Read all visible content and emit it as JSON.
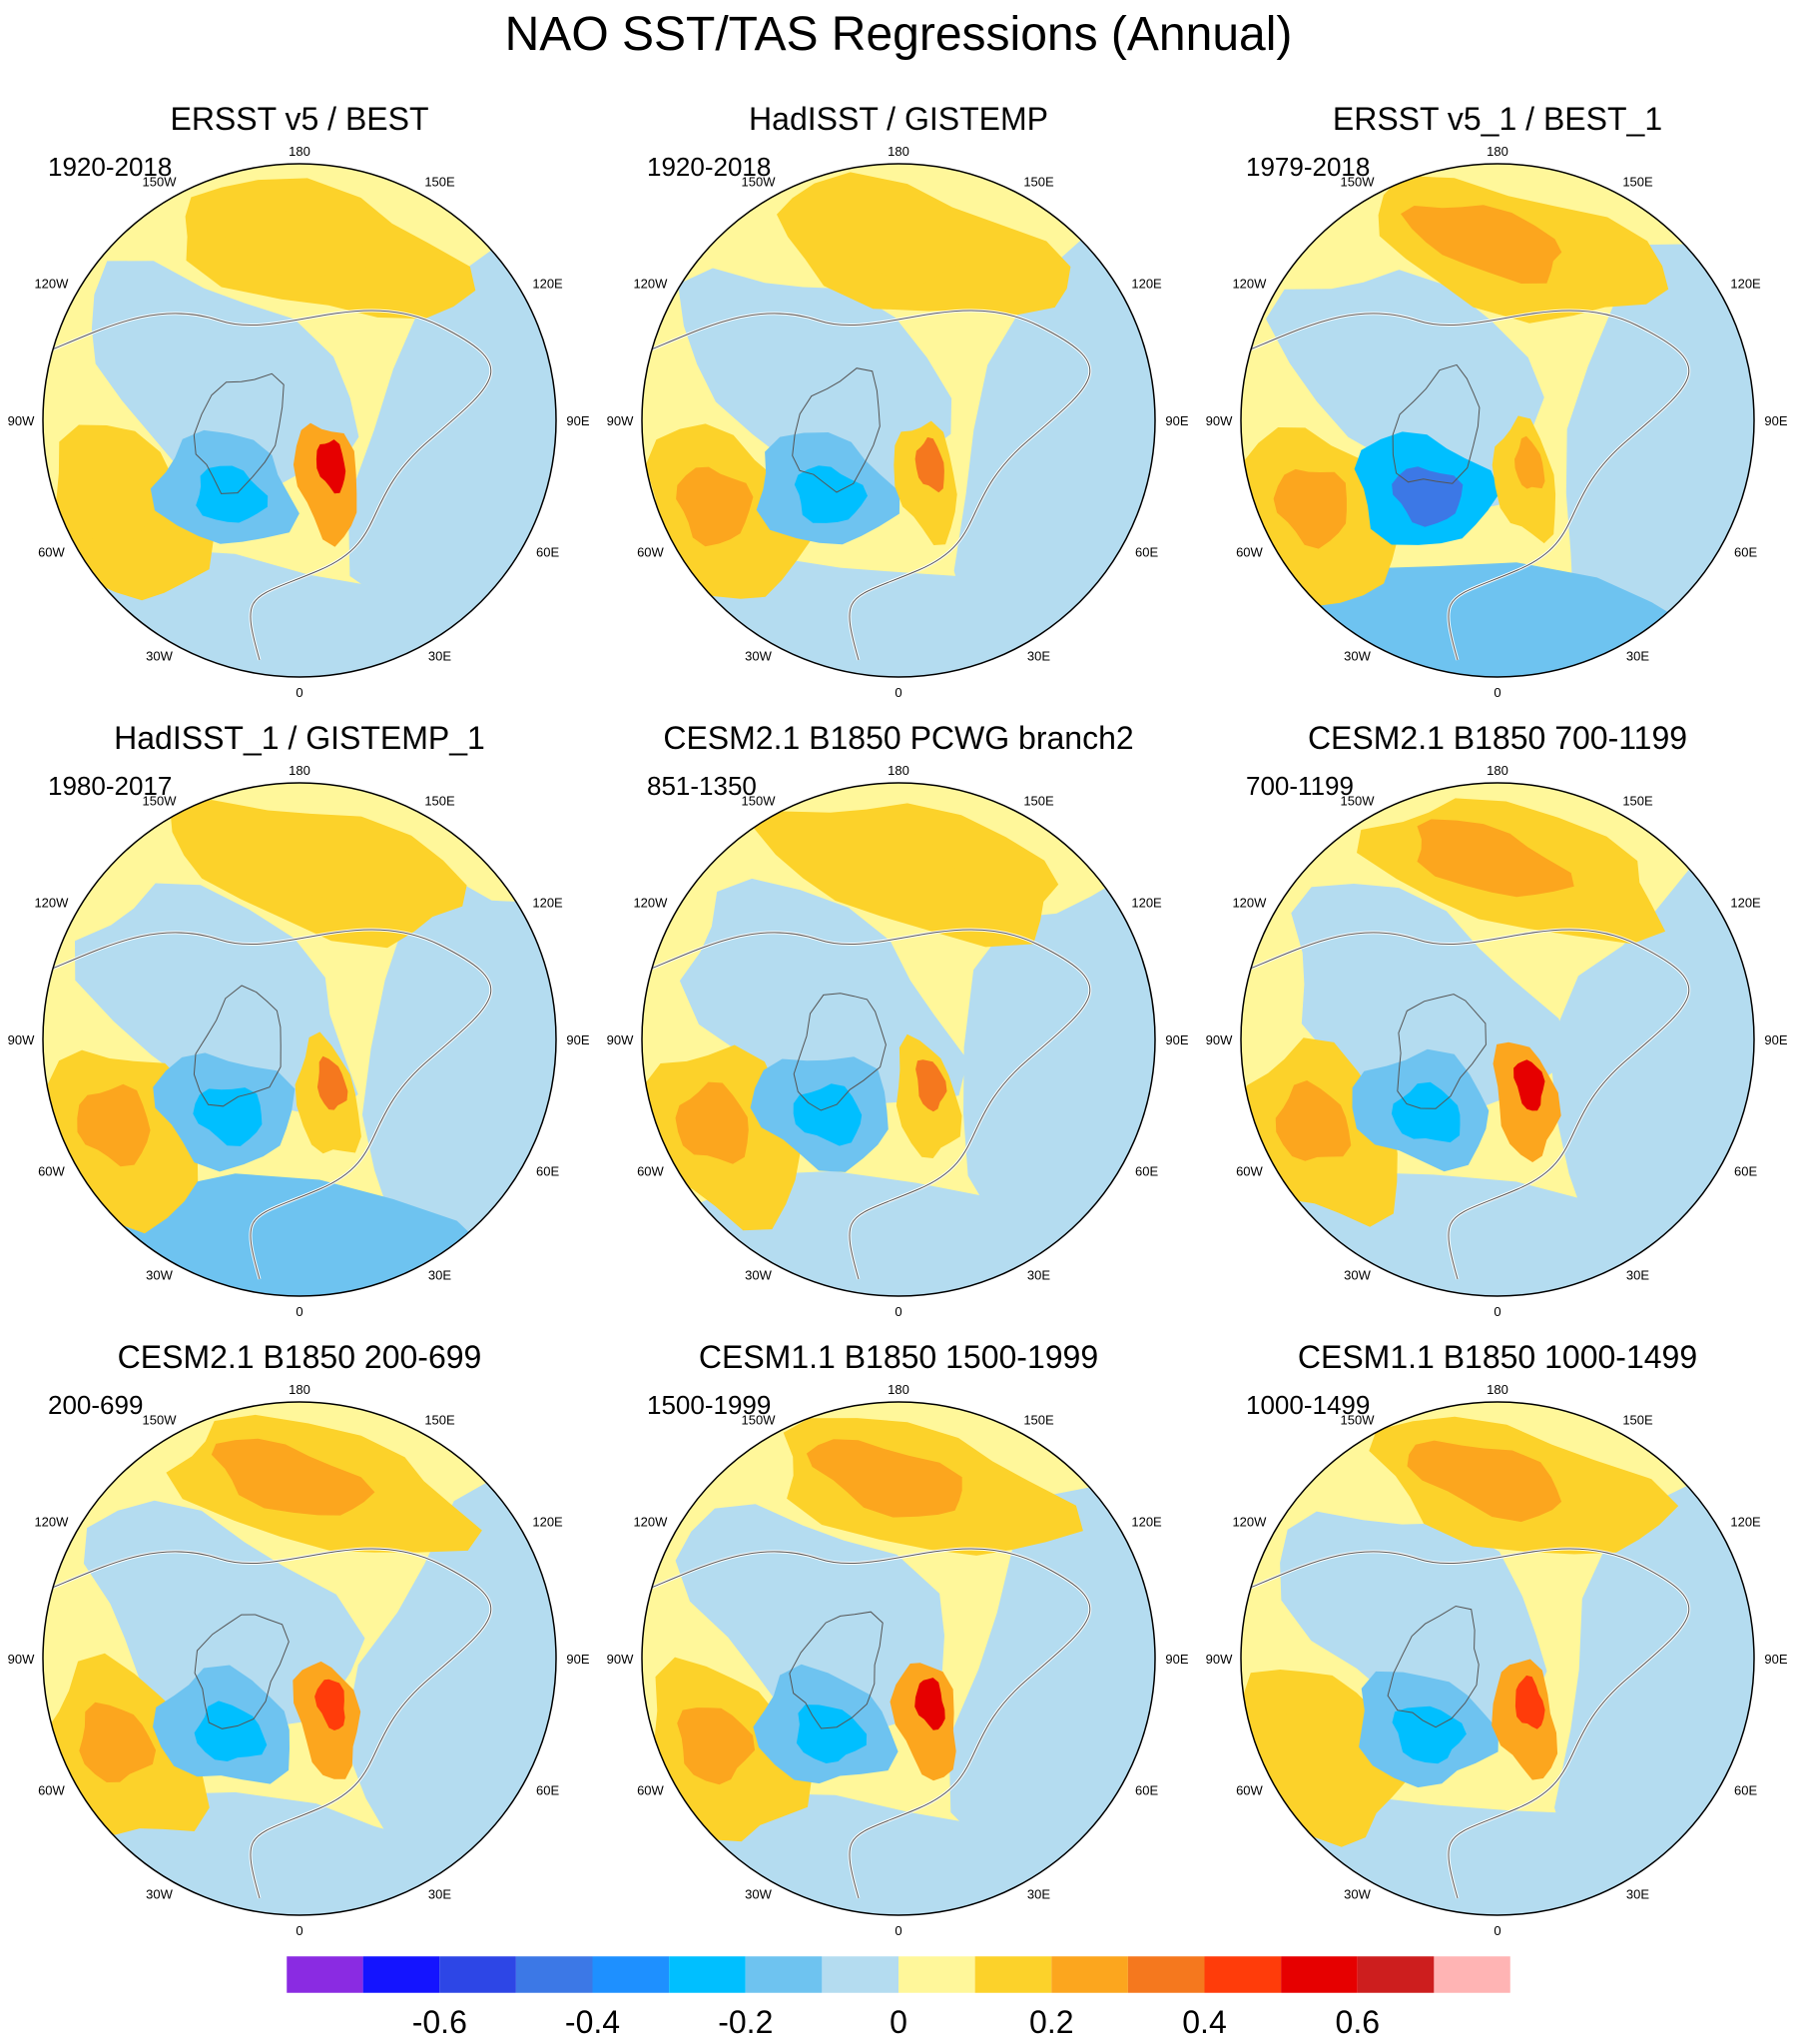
{
  "figure": {
    "title": "NAO SST/TAS Regressions (Annual)"
  },
  "chart_data": {
    "type": "polar-stereographic contour maps (regression)",
    "projection": "north polar stereographic, 0 at bottom, 180 at top",
    "longitude_labels": [
      "180",
      "150W",
      "150E",
      "120W",
      "120E",
      "90W",
      "90E",
      "60W",
      "60E",
      "30W",
      "30E",
      "0"
    ],
    "panels": [
      {
        "title": "ERSST v5 / BEST",
        "period": "1920-2018",
        "features": {
          "north_pacific": 0.15,
          "northwest_atlantic": 0.15,
          "labrador_greenland": -0.25,
          "scandinavia_max": 0.5,
          "eastern_atlantic": -0.05
        }
      },
      {
        "title": "HadISST / GISTEMP",
        "period": "1920-2018",
        "features": {
          "north_pacific": 0.15,
          "northwest_atlantic": 0.2,
          "labrador_greenland": -0.3,
          "scandinavia_max": 0.3,
          "eastern_atlantic": -0.05
        }
      },
      {
        "title": "ERSST v5_1 / BEST_1",
        "period": "1979-2018",
        "features": {
          "north_pacific": 0.2,
          "northwest_atlantic": 0.2,
          "labrador_greenland": -0.45,
          "scandinavia_max": 0.2,
          "eastern_atlantic": -0.15
        }
      },
      {
        "title": "HadISST_1 / GISTEMP_1",
        "period": "1980-2017",
        "features": {
          "north_pacific": 0.15,
          "northwest_atlantic": 0.2,
          "labrador_greenland": -0.3,
          "scandinavia_max": 0.3,
          "eastern_atlantic": -0.2
        }
      },
      {
        "title": "CESM2.1 B1850 PCWG branch2",
        "period": "851-1350",
        "features": {
          "north_pacific": 0.15,
          "northwest_atlantic": 0.2,
          "labrador_greenland": -0.25,
          "scandinavia_max": 0.3,
          "eastern_atlantic": -0.1
        }
      },
      {
        "title": "CESM2.1 B1850 700-1199",
        "period": "700-1199",
        "features": {
          "north_pacific": 0.2,
          "northwest_atlantic": 0.2,
          "labrador_greenland": -0.25,
          "scandinavia_max": 0.5,
          "eastern_atlantic": -0.1
        }
      },
      {
        "title": "CESM2.1 B1850 200-699",
        "period": "200-699",
        "features": {
          "north_pacific": 0.2,
          "northwest_atlantic": 0.2,
          "labrador_greenland": -0.25,
          "scandinavia_max": 0.45,
          "eastern_atlantic": -0.1
        }
      },
      {
        "title": "CESM1.1 B1850 1500-1999",
        "period": "1500-1999",
        "features": {
          "north_pacific": 0.25,
          "northwest_atlantic": 0.2,
          "labrador_greenland": -0.3,
          "scandinavia_max": 0.5,
          "eastern_atlantic": -0.1
        }
      },
      {
        "title": "CESM1.1 B1850 1000-1499",
        "period": "1000-1499",
        "features": {
          "north_pacific": 0.2,
          "northwest_atlantic": 0.15,
          "labrador_greenland": -0.3,
          "scandinavia_max": 0.4,
          "eastern_atlantic": -0.1
        }
      }
    ],
    "colorbar": {
      "levels": [
        -0.7,
        -0.6,
        -0.5,
        -0.4,
        -0.3,
        -0.2,
        -0.1,
        0,
        0.1,
        0.2,
        0.3,
        0.4,
        0.5,
        0.6,
        0.7
      ],
      "tick_values": [
        -0.6,
        -0.4,
        -0.2,
        0,
        0.2,
        0.4,
        0.6
      ],
      "tick_labels": [
        "-0.6",
        "-0.4",
        "-0.2",
        "0",
        "0.2",
        "0.4",
        "0.6"
      ],
      "colors": [
        "#8a2be2",
        "#1414ff",
        "#2d46e6",
        "#3c78e6",
        "#1e90ff",
        "#00bfff",
        "#6ec3f0",
        "#b4dcf0",
        "#fff79a",
        "#fcd22a",
        "#fca61e",
        "#f5781e",
        "#ff3c0a",
        "#e60000",
        "#cd1e1e",
        "#ffb4b4"
      ]
    }
  }
}
